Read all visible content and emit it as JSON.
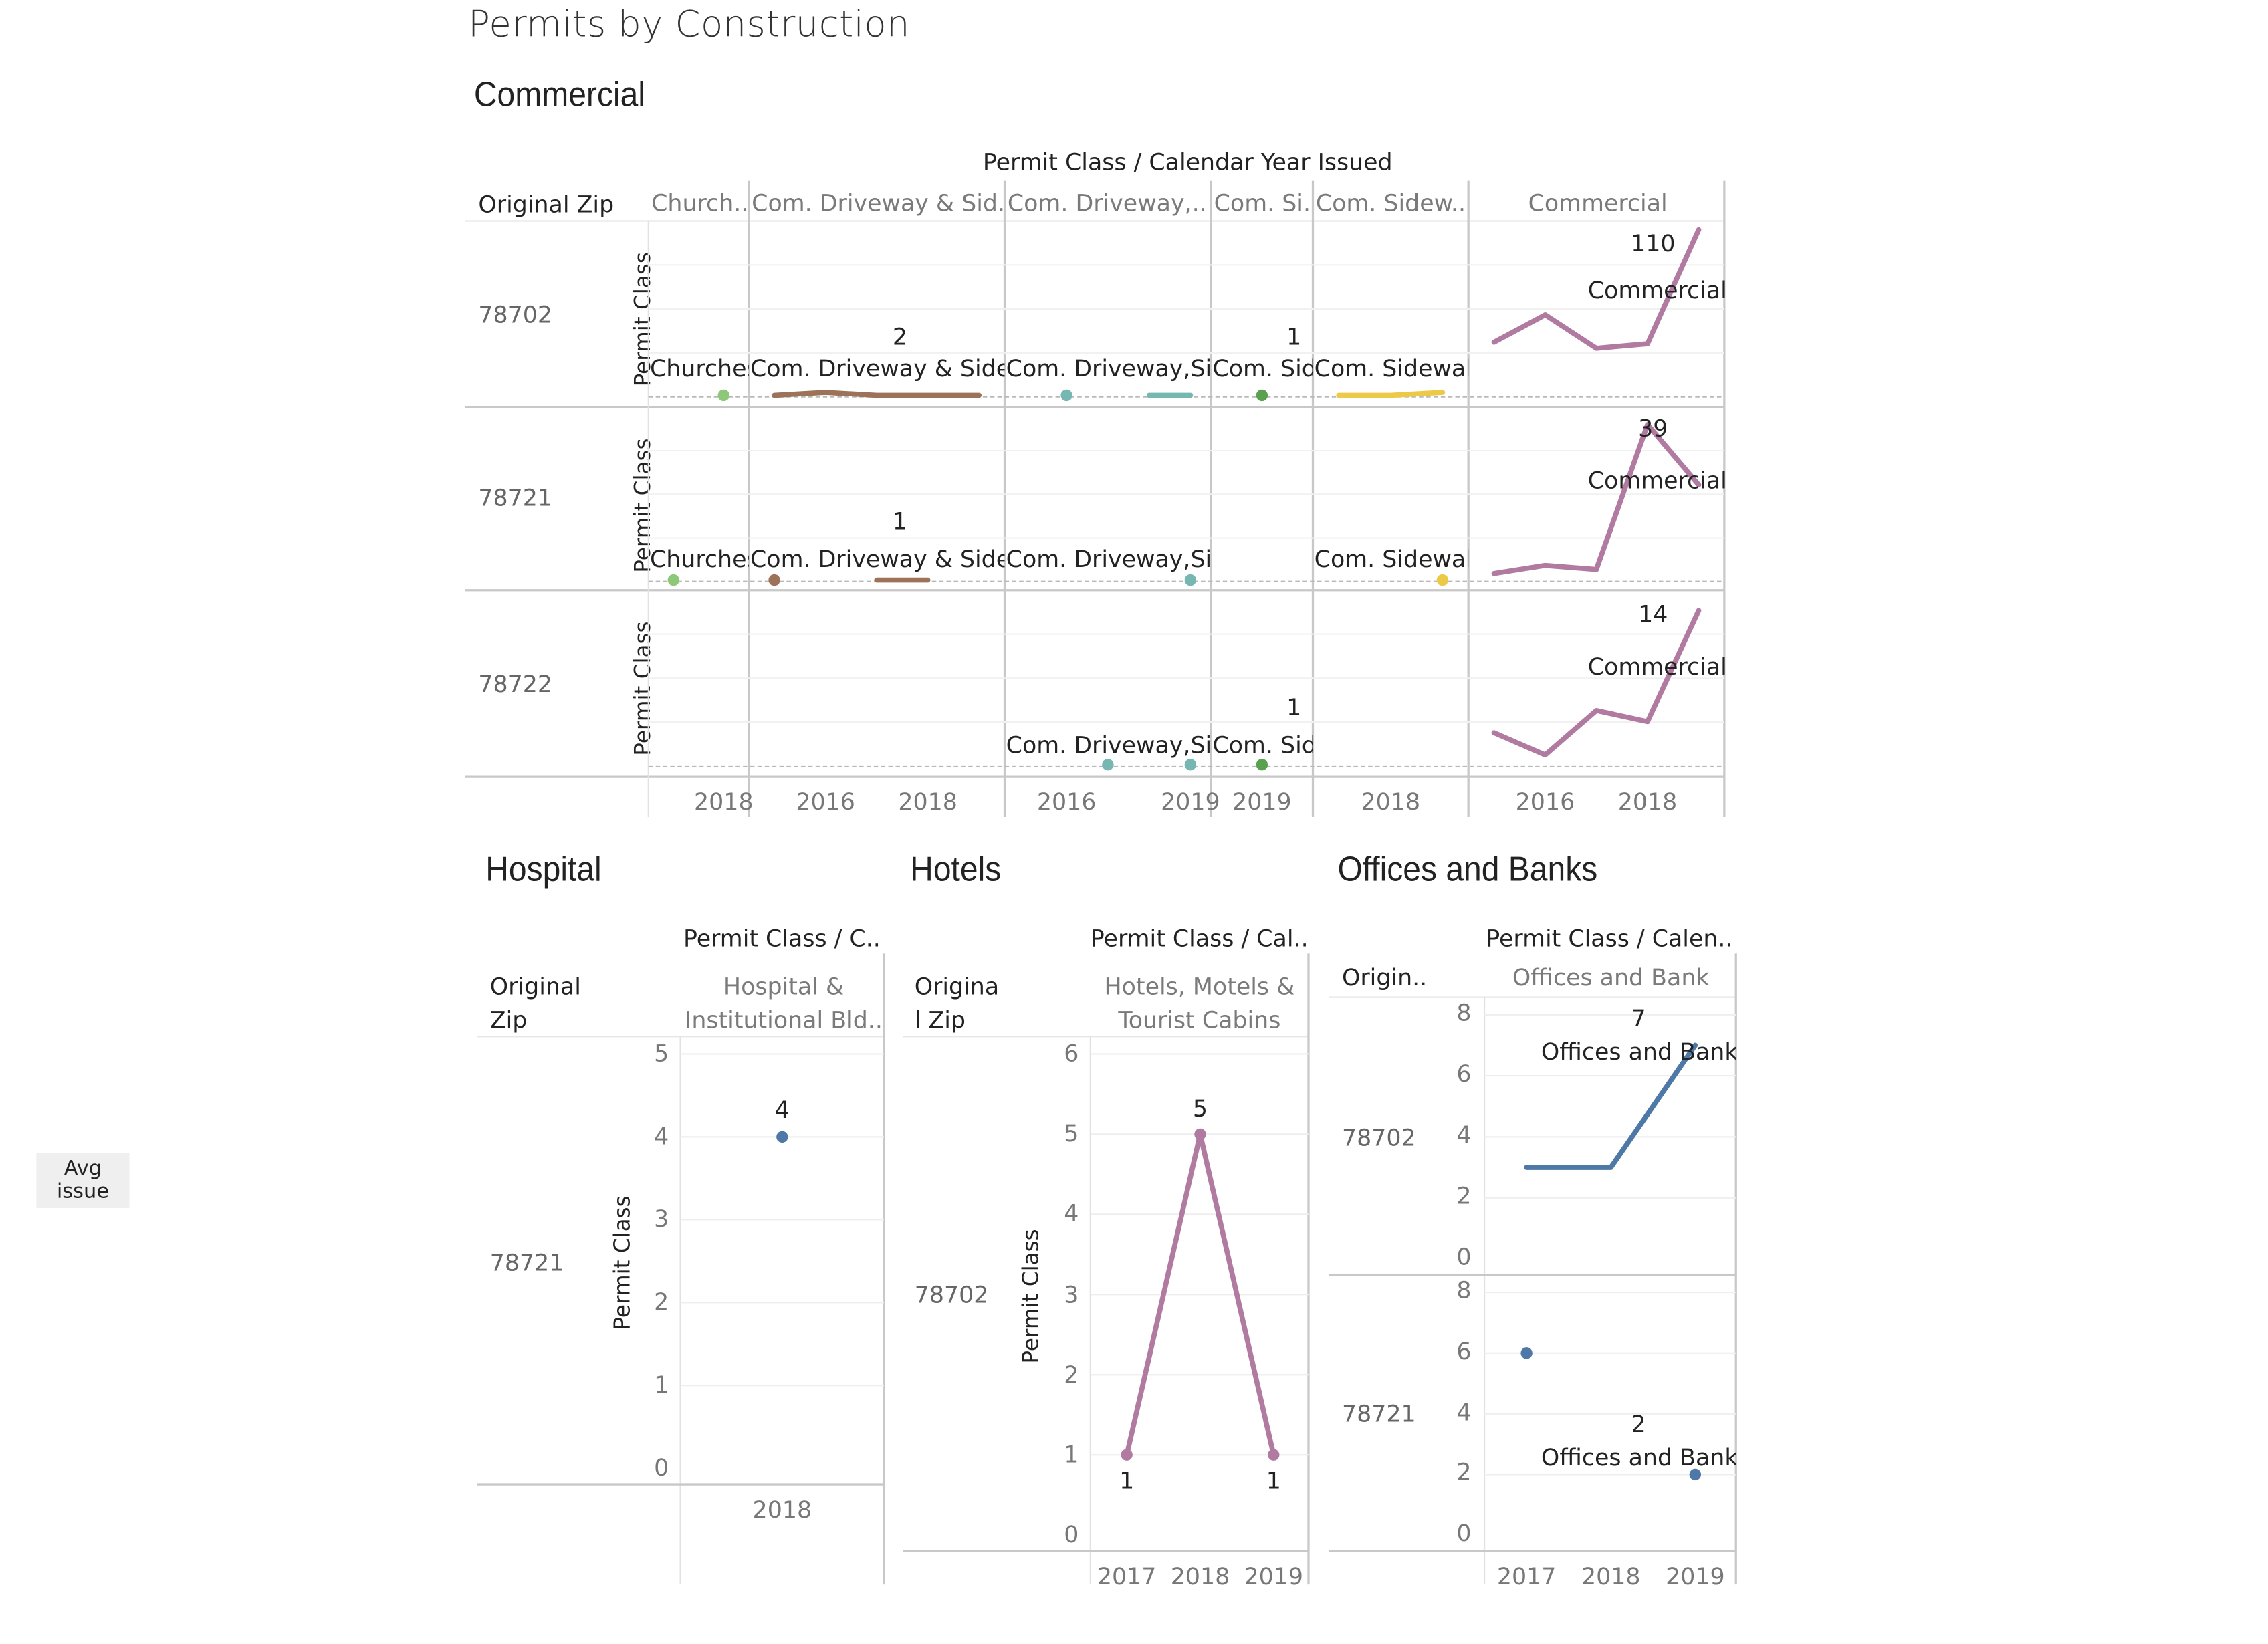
{
  "dashboard_title": "Permits by Construction",
  "avg_button": "Avg issue",
  "axis_title": "Permit Class",
  "colors": {
    "churches": "#8cc878",
    "driveway_sidewalk": "#9c7358",
    "driveway_comma": "#76b7b2",
    "com_side": "#59a14f",
    "com_sidewalk": "#edc948",
    "commercial": "#b07aa1",
    "hotels": "#b07aa1",
    "hospital": "#4e79a7",
    "offices": "#4e79a7"
  },
  "commercial": {
    "title": "Commercial",
    "header": "Permit Class  /  Calendar Year Issued",
    "row_header": "Original Zip",
    "columns": [
      "Church..",
      "Com. Driveway & Sid..",
      "Com. Driveway,..",
      "Com. Si..",
      "Com. Sidew..",
      "Commercial"
    ],
    "rows": [
      "78702",
      "78721",
      "78722"
    ],
    "x_ticks": [
      {
        "col": 0,
        "text": "2018"
      },
      {
        "col": 1,
        "text": "2016"
      },
      {
        "col": 1,
        "text": "2018"
      },
      {
        "col": 2,
        "text": "2016"
      },
      {
        "col": 2,
        "text": "2019"
      },
      {
        "col": 3,
        "text": "2019"
      },
      {
        "col": 4,
        "text": "2018"
      },
      {
        "col": 5,
        "text": "2016"
      },
      {
        "col": 5,
        "text": "2018"
      }
    ],
    "labels": [
      {
        "row": 0,
        "col": 0,
        "text": "Churches"
      },
      {
        "row": 0,
        "col": 1,
        "value": "2",
        "text": "Com. Driveway & Sidewalk"
      },
      {
        "row": 0,
        "col": 2,
        "text": "Com. Driveway,Sidewalk"
      },
      {
        "row": 0,
        "col": 3,
        "value": "1",
        "text": "Com. Sidewalk"
      },
      {
        "row": 0,
        "col": 4,
        "text": "Com. Sidewalk"
      },
      {
        "row": 0,
        "col": 5,
        "value": "110",
        "text": "Commercial"
      },
      {
        "row": 1,
        "col": 0,
        "text": "Churches"
      },
      {
        "row": 1,
        "col": 1,
        "value": "1",
        "text": "Com. Driveway & Sidewalk"
      },
      {
        "row": 1,
        "col": 2,
        "text": "Com. Driveway,Sidewalk"
      },
      {
        "row": 1,
        "col": 4,
        "text": "Com. Sidewalk"
      },
      {
        "row": 1,
        "col": 5,
        "value": "39",
        "text": "Commercial"
      },
      {
        "row": 2,
        "col": 2,
        "text": "Com. Driveway,Sidewalk"
      },
      {
        "row": 2,
        "col": 3,
        "value": "1",
        "text": "Com. Sidewalk"
      },
      {
        "row": 2,
        "col": 5,
        "value": "14",
        "text": "Commercial"
      }
    ]
  },
  "hospital": {
    "title": "Hospital",
    "header": "Permit Class  /  C..",
    "row_header_line1": "Original",
    "row_header_line2": "Zip",
    "column_line1": "Hospital &",
    "column_line2": "Institutional Bld..",
    "row": "78721",
    "y_ticks": [
      "0",
      "1",
      "2",
      "3",
      "4",
      "5"
    ],
    "x_ticks": [
      "2018"
    ],
    "value_label": "4"
  },
  "hotels": {
    "title": "Hotels",
    "header": "Permit Class  /  Cal..",
    "row_header_line1": "Origina",
    "row_header_line2": "l Zip",
    "column_line1": "Hotels, Motels &",
    "column_line2": "Tourist Cabins",
    "row": "78702",
    "y_ticks": [
      "0",
      "1",
      "2",
      "3",
      "4",
      "5",
      "6"
    ],
    "x_ticks": [
      "2017",
      "2018",
      "2019"
    ],
    "value_labels": [
      "1",
      "5",
      "1"
    ]
  },
  "offices": {
    "title": "Offices and Banks",
    "header": "Permit Class  /  Calen..",
    "row_header": "Origin..",
    "column": "Offices and Bank",
    "rows": [
      "78702",
      "78721"
    ],
    "y_ticks": [
      "0",
      "2",
      "4",
      "6",
      "8"
    ],
    "x_ticks": [
      "2017",
      "2018",
      "2019"
    ],
    "labels": [
      {
        "row": 0,
        "value": "7",
        "text": "Offices and Bank"
      },
      {
        "row": 1,
        "value": "2",
        "text": "Offices and Bank"
      }
    ]
  },
  "chart_data": [
    {
      "type": "line",
      "title": "Commercial",
      "xlabel": "Calendar Year Issued",
      "ylabel": "Permit Class",
      "panels": [
        {
          "zip": "78702",
          "series": [
            {
              "name": "Churches",
              "x": [
                2018
              ],
              "values": [
                1
              ]
            },
            {
              "name": "Com. Driveway & Sidewalk",
              "x": [
                2015,
                2016,
                2017,
                2018,
                2019
              ],
              "values": [
                1,
                2,
                1,
                1,
                1
              ]
            },
            {
              "name": "Com. Driveway,Sidewalk",
              "x": [
                2016,
                2018,
                2019
              ],
              "values": [
                1,
                1,
                1
              ]
            },
            {
              "name": "Com. Sidewalk",
              "x": [
                2019
              ],
              "values": [
                1
              ]
            },
            {
              "name": "Com. Sidewalk",
              "x": [
                2017,
                2018,
                2019
              ],
              "values": [
                1,
                1,
                2
              ]
            },
            {
              "name": "Commercial",
              "x": [
                2015,
                2016,
                2017,
                2018,
                2019
              ],
              "values": [
                36,
                54,
                32,
                35,
                110
              ]
            }
          ]
        },
        {
          "zip": "78721",
          "series": [
            {
              "name": "Churches",
              "x": [
                2017
              ],
              "values": [
                1
              ]
            },
            {
              "name": "Com. Driveway & Sidewalk",
              "x": [
                2015,
                2017,
                2018
              ],
              "values": [
                1,
                1,
                1
              ]
            },
            {
              "name": "Com. Driveway,Sidewalk",
              "x": [
                2019
              ],
              "values": [
                1
              ]
            },
            {
              "name": "Com. Sidewalk",
              "x": [
                2019
              ],
              "values": [
                1
              ]
            },
            {
              "name": "Commercial",
              "x": [
                2015,
                2016,
                2017,
                2018,
                2019
              ],
              "values": [
                2,
                4,
                3,
                39,
                24
              ]
            }
          ]
        },
        {
          "zip": "78722",
          "series": [
            {
              "name": "Com. Driveway,Sidewalk",
              "x": [
                2017,
                2019
              ],
              "values": [
                1,
                1
              ]
            },
            {
              "name": "Com. Sidewalk",
              "x": [
                2019
              ],
              "values": [
                1
              ]
            },
            {
              "name": "Commercial",
              "x": [
                2015,
                2016,
                2017,
                2018,
                2019
              ],
              "values": [
                3,
                1,
                5,
                4,
                14
              ]
            }
          ]
        }
      ]
    },
    {
      "type": "scatter",
      "title": "Hospital",
      "ylabel": "Permit Class",
      "series": [
        {
          "name": "Hospital & Institutional Bldgs",
          "zip": "78721",
          "x": [
            2018
          ],
          "values": [
            4
          ]
        }
      ],
      "ylim": [
        0,
        5
      ]
    },
    {
      "type": "line",
      "title": "Hotels",
      "ylabel": "Permit Class",
      "series": [
        {
          "name": "Hotels, Motels & Tourist Cabins",
          "zip": "78702",
          "x": [
            2017,
            2018,
            2019
          ],
          "values": [
            1,
            5,
            1
          ]
        }
      ],
      "ylim": [
        0,
        6
      ]
    },
    {
      "type": "line",
      "title": "Offices and Banks",
      "series": [
        {
          "name": "Offices and Bank",
          "zip": "78702",
          "x": [
            2017,
            2018,
            2019
          ],
          "values": [
            3,
            3,
            7
          ]
        },
        {
          "name": "Offices and Bank",
          "zip": "78721",
          "x": [
            2017,
            2019
          ],
          "values": [
            6,
            2
          ]
        }
      ],
      "ylim": [
        0,
        8
      ]
    }
  ]
}
